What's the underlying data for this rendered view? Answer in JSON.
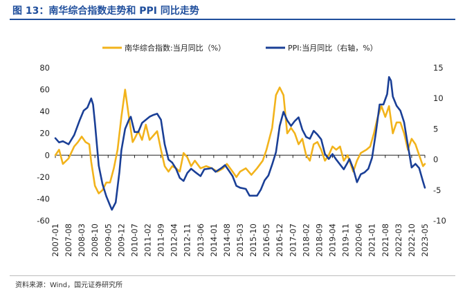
{
  "figure": {
    "title": "图 13：南华综合指数走势和 PPI 同比走势",
    "source": "资料来源：Wind，国元证券研究所"
  },
  "colors": {
    "series1": "#f2b31b",
    "series2": "#1a3f96",
    "title": "#1f4e9c"
  },
  "chart_data": {
    "type": "line",
    "title": "",
    "legend_position": "top-center",
    "grid": false,
    "x_tick_labels": [
      "2007-01",
      "2007-08",
      "2008-03",
      "2008-10",
      "2009-05",
      "2009-12",
      "2010-07",
      "2011-02",
      "2011-09",
      "2012-04",
      "2012-11",
      "2013-06",
      "2014-01",
      "2014-08",
      "2015-03",
      "2015-10",
      "2016-05",
      "2016-12",
      "2017-07",
      "2018-02",
      "2018-09",
      "2019-04",
      "2019-11",
      "2020-06",
      "2021-01",
      "2021-08",
      "2022-03",
      "2022-10",
      "2023-05"
    ],
    "y_left": {
      "label": "",
      "ticks": [
        80,
        60,
        40,
        20,
        0,
        -20,
        -40,
        -60
      ],
      "range": [
        -60,
        80
      ]
    },
    "y_right": {
      "label": "",
      "ticks": [
        15,
        10,
        5,
        0,
        -5,
        -10
      ],
      "range": [
        -10,
        15
      ]
    },
    "series": [
      {
        "name": "南华综合指数:当月同比（%）",
        "axis": "left",
        "points": [
          [
            "2007-01",
            0
          ],
          [
            "2007-03",
            5
          ],
          [
            "2007-05",
            -8
          ],
          [
            "2007-08",
            -3
          ],
          [
            "2007-11",
            8
          ],
          [
            "2008-01",
            12
          ],
          [
            "2008-03",
            17
          ],
          [
            "2008-05",
            12
          ],
          [
            "2008-07",
            10
          ],
          [
            "2008-08",
            -6
          ],
          [
            "2008-10",
            -28
          ],
          [
            "2008-12",
            -35
          ],
          [
            "2009-02",
            -32
          ],
          [
            "2009-04",
            -25
          ],
          [
            "2009-06",
            -25
          ],
          [
            "2009-08",
            -12
          ],
          [
            "2009-10",
            5
          ],
          [
            "2009-12",
            35
          ],
          [
            "2010-02",
            60
          ],
          [
            "2010-04",
            35
          ],
          [
            "2010-06",
            12
          ],
          [
            "2010-07",
            15
          ],
          [
            "2010-09",
            22
          ],
          [
            "2010-11",
            14
          ],
          [
            "2011-01",
            28
          ],
          [
            "2011-03",
            14
          ],
          [
            "2011-05",
            18
          ],
          [
            "2011-07",
            22
          ],
          [
            "2011-09",
            5
          ],
          [
            "2011-11",
            -10
          ],
          [
            "2012-01",
            -15
          ],
          [
            "2012-03",
            -10
          ],
          [
            "2012-05",
            -12
          ],
          [
            "2012-07",
            -15
          ],
          [
            "2012-09",
            2
          ],
          [
            "2012-11",
            -2
          ],
          [
            "2013-01",
            -10
          ],
          [
            "2013-03",
            -5
          ],
          [
            "2013-06",
            -12
          ],
          [
            "2013-09",
            -10
          ],
          [
            "2013-12",
            -12
          ],
          [
            "2014-03",
            -15
          ],
          [
            "2014-06",
            -12
          ],
          [
            "2014-08",
            -8
          ],
          [
            "2014-11",
            -15
          ],
          [
            "2015-01",
            -20
          ],
          [
            "2015-03",
            -15
          ],
          [
            "2015-06",
            -12
          ],
          [
            "2015-09",
            -18
          ],
          [
            "2015-12",
            -12
          ],
          [
            "2016-03",
            -5
          ],
          [
            "2016-05",
            5
          ],
          [
            "2016-08",
            25
          ],
          [
            "2016-10",
            55
          ],
          [
            "2016-12",
            62
          ],
          [
            "2017-02",
            55
          ],
          [
            "2017-04",
            20
          ],
          [
            "2017-06",
            25
          ],
          [
            "2017-08",
            20
          ],
          [
            "2017-10",
            10
          ],
          [
            "2017-12",
            15
          ],
          [
            "2018-02",
            0
          ],
          [
            "2018-04",
            -5
          ],
          [
            "2018-06",
            10
          ],
          [
            "2018-08",
            12
          ],
          [
            "2018-10",
            5
          ],
          [
            "2018-12",
            -5
          ],
          [
            "2019-02",
            0
          ],
          [
            "2019-04",
            8
          ],
          [
            "2019-06",
            5
          ],
          [
            "2019-08",
            8
          ],
          [
            "2019-10",
            -5
          ],
          [
            "2019-12",
            0
          ],
          [
            "2020-03",
            -15
          ],
          [
            "2020-05",
            -5
          ],
          [
            "2020-07",
            2
          ],
          [
            "2020-10",
            5
          ],
          [
            "2020-12",
            8
          ],
          [
            "2021-02",
            20
          ],
          [
            "2021-04",
            35
          ],
          [
            "2021-06",
            45
          ],
          [
            "2021-08",
            35
          ],
          [
            "2021-10",
            45
          ],
          [
            "2021-12",
            20
          ],
          [
            "2022-02",
            30
          ],
          [
            "2022-04",
            30
          ],
          [
            "2022-06",
            20
          ],
          [
            "2022-08",
            5
          ],
          [
            "2022-10",
            15
          ],
          [
            "2022-12",
            10
          ],
          [
            "2023-02",
            0
          ],
          [
            "2023-04",
            -10
          ],
          [
            "2023-05",
            -8
          ]
        ]
      },
      {
        "name": "PPI:当月同比（右轴，%）",
        "axis": "right",
        "points": [
          [
            "2007-01",
            3.5
          ],
          [
            "2007-03",
            2.8
          ],
          [
            "2007-05",
            3
          ],
          [
            "2007-08",
            2.5
          ],
          [
            "2007-11",
            4
          ],
          [
            "2008-02",
            6.5
          ],
          [
            "2008-04",
            8
          ],
          [
            "2008-06",
            8.5
          ],
          [
            "2008-08",
            10
          ],
          [
            "2008-09",
            9
          ],
          [
            "2008-10",
            6
          ],
          [
            "2008-12",
            -1
          ],
          [
            "2009-02",
            -4
          ],
          [
            "2009-04",
            -6
          ],
          [
            "2009-06",
            -7.5
          ],
          [
            "2009-07",
            -8.2
          ],
          [
            "2009-09",
            -7
          ],
          [
            "2009-11",
            -2
          ],
          [
            "2009-12",
            1.5
          ],
          [
            "2010-02",
            5
          ],
          [
            "2010-04",
            6.5
          ],
          [
            "2010-05",
            7
          ],
          [
            "2010-07",
            4.5
          ],
          [
            "2010-09",
            4.5
          ],
          [
            "2010-11",
            6
          ],
          [
            "2011-01",
            6.5
          ],
          [
            "2011-03",
            7
          ],
          [
            "2011-05",
            7.3
          ],
          [
            "2011-07",
            7.5
          ],
          [
            "2011-09",
            6.5
          ],
          [
            "2011-11",
            2.5
          ],
          [
            "2012-01",
            0
          ],
          [
            "2012-03",
            -0.5
          ],
          [
            "2012-05",
            -1.5
          ],
          [
            "2012-07",
            -3
          ],
          [
            "2012-09",
            -3.5
          ],
          [
            "2012-11",
            -2.2
          ],
          [
            "2013-01",
            -1.5
          ],
          [
            "2013-03",
            -2
          ],
          [
            "2013-06",
            -2.7
          ],
          [
            "2013-08",
            -1.6
          ],
          [
            "2013-10",
            -1.5
          ],
          [
            "2013-12",
            -1.4
          ],
          [
            "2014-02",
            -2
          ],
          [
            "2014-05",
            -1.4
          ],
          [
            "2014-07",
            -0.9
          ],
          [
            "2014-09",
            -1.8
          ],
          [
            "2014-11",
            -2.7
          ],
          [
            "2015-01",
            -4.3
          ],
          [
            "2015-03",
            -4.6
          ],
          [
            "2015-06",
            -4.8
          ],
          [
            "2015-08",
            -5.9
          ],
          [
            "2015-10",
            -5.9
          ],
          [
            "2015-12",
            -5.9
          ],
          [
            "2016-02",
            -4.9
          ],
          [
            "2016-04",
            -3.4
          ],
          [
            "2016-06",
            -2.6
          ],
          [
            "2016-08",
            -0.8
          ],
          [
            "2016-10",
            1.2
          ],
          [
            "2016-12",
            5.5
          ],
          [
            "2017-02",
            7.8
          ],
          [
            "2017-04",
            6.4
          ],
          [
            "2017-06",
            5.5
          ],
          [
            "2017-08",
            6.3
          ],
          [
            "2017-10",
            6.9
          ],
          [
            "2017-12",
            4.9
          ],
          [
            "2018-02",
            3.7
          ],
          [
            "2018-04",
            3.4
          ],
          [
            "2018-06",
            4.7
          ],
          [
            "2018-08",
            4.1
          ],
          [
            "2018-10",
            3.3
          ],
          [
            "2018-12",
            0.9
          ],
          [
            "2019-02",
            0.1
          ],
          [
            "2019-04",
            0.9
          ],
          [
            "2019-06",
            0
          ],
          [
            "2019-08",
            -0.8
          ],
          [
            "2019-10",
            -1.6
          ],
          [
            "2019-12",
            -0.5
          ],
          [
            "2020-01",
            0.1
          ],
          [
            "2020-03",
            -1.5
          ],
          [
            "2020-05",
            -3.7
          ],
          [
            "2020-07",
            -2.4
          ],
          [
            "2020-09",
            -2.1
          ],
          [
            "2020-11",
            -1.5
          ],
          [
            "2021-01",
            0.3
          ],
          [
            "2021-03",
            4.4
          ],
          [
            "2021-05",
            9
          ],
          [
            "2021-07",
            9
          ],
          [
            "2021-09",
            10.7
          ],
          [
            "2021-10",
            13.5
          ],
          [
            "2021-11",
            12.9
          ],
          [
            "2021-12",
            10.3
          ],
          [
            "2022-02",
            8.8
          ],
          [
            "2022-04",
            8
          ],
          [
            "2022-06",
            6.1
          ],
          [
            "2022-08",
            2.3
          ],
          [
            "2022-10",
            -1.3
          ],
          [
            "2022-12",
            -0.7
          ],
          [
            "2023-02",
            -1.4
          ],
          [
            "2023-04",
            -3.6
          ],
          [
            "2023-05",
            -4.6
          ]
        ]
      }
    ]
  }
}
